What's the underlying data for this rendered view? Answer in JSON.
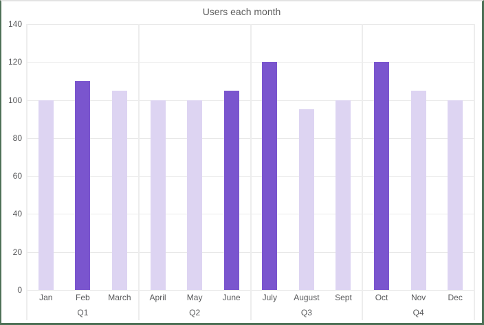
{
  "title": "Users each month",
  "chart_data": {
    "type": "bar",
    "title": "Users each month",
    "xlabel": "",
    "ylabel": "",
    "ylim": [
      0,
      140
    ],
    "yticks": [
      140,
      120,
      100,
      80,
      60,
      40,
      20,
      0
    ],
    "grid": true,
    "legend": false,
    "categories": [
      "Jan",
      "Feb",
      "March",
      "April",
      "May",
      "June",
      "July",
      "August",
      "Sept",
      "Oct",
      "Nov",
      "Dec"
    ],
    "values": [
      100,
      110,
      105,
      100,
      100,
      105,
      120,
      95,
      100,
      120,
      105,
      100
    ],
    "groups": [
      {
        "label": "Q1",
        "months": [
          "Jan",
          "Feb",
          "March"
        ],
        "values": [
          100,
          110,
          105
        ],
        "emphasis": [
          false,
          true,
          false
        ]
      },
      {
        "label": "Q2",
        "months": [
          "April",
          "May",
          "June"
        ],
        "values": [
          100,
          100,
          105
        ],
        "emphasis": [
          false,
          false,
          true
        ]
      },
      {
        "label": "Q3",
        "months": [
          "July",
          "August",
          "Sept"
        ],
        "values": [
          120,
          95,
          100
        ],
        "emphasis": [
          true,
          false,
          false
        ]
      },
      {
        "label": "Q4",
        "months": [
          "Oct",
          "Nov",
          "Dec"
        ],
        "values": [
          120,
          105,
          100
        ],
        "emphasis": [
          true,
          false,
          false
        ]
      }
    ],
    "colors": {
      "bar_light": "#ddd4f2",
      "bar_dark": "#7a55ce",
      "gridline": "#e8e8e8",
      "separator": "#ededed",
      "axis_text": "#58595b",
      "title_text": "#5c5c5c",
      "frame_border": "#4e7157",
      "top_border": "#e3e3e3",
      "background": "#ffffff"
    }
  }
}
